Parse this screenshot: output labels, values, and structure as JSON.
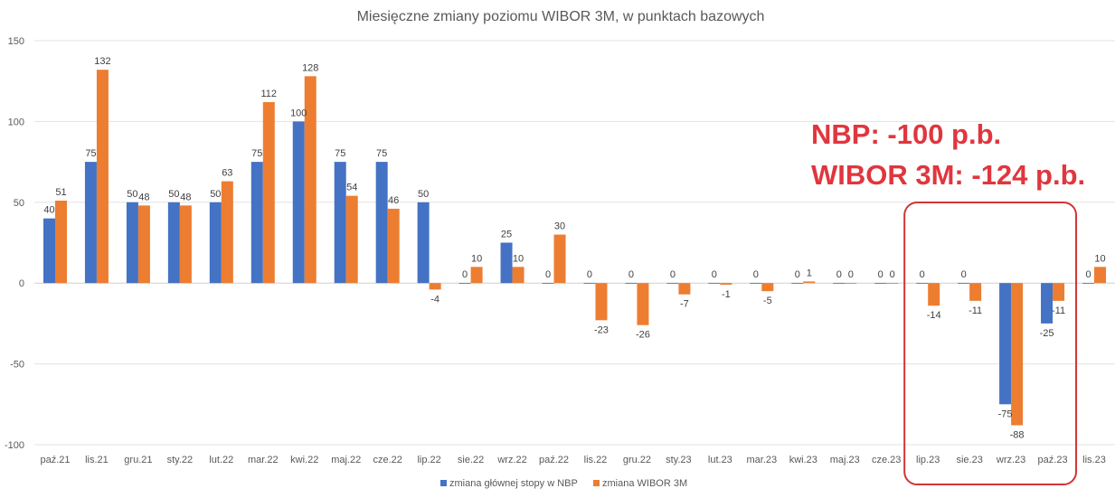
{
  "chart_data": {
    "type": "bar",
    "title": "Miesięczne zmiany poziomu WIBOR 3M, w punktach bazowych",
    "categories": [
      "paź.21",
      "lis.21",
      "gru.21",
      "sty.22",
      "lut.22",
      "mar.22",
      "kwi.22",
      "maj.22",
      "cze.22",
      "lip.22",
      "sie.22",
      "wrz.22",
      "paź.22",
      "lis.22",
      "gru.22",
      "sty.23",
      "lut.23",
      "mar.23",
      "kwi.23",
      "maj.23",
      "cze.23",
      "lip.23",
      "sie.23",
      "wrz.23",
      "paź.23",
      "lis.23"
    ],
    "series": [
      {
        "name": "zmiana głównej stopy w NBP",
        "color": "#4472c4",
        "values": [
          40,
          75,
          50,
          50,
          50,
          75,
          100,
          75,
          75,
          50,
          0,
          25,
          0,
          0,
          0,
          0,
          0,
          0,
          0,
          0,
          0,
          0,
          0,
          -75,
          -25,
          0
        ]
      },
      {
        "name": "zmiana WIBOR 3M",
        "color": "#ed7d31",
        "values": [
          51,
          132,
          48,
          48,
          63,
          112,
          128,
          54,
          46,
          -4,
          10,
          10,
          30,
          -23,
          -26,
          -7,
          -1,
          -5,
          1,
          0,
          0,
          -14,
          -11,
          -88,
          -11,
          10
        ]
      }
    ],
    "ylim": [
      -100,
      150
    ],
    "yticks": [
      -100,
      -50,
      0,
      50,
      100,
      150
    ],
    "xlabel": "",
    "ylabel": "",
    "grid": true,
    "legend": "bottom",
    "annotations": [
      {
        "text": "NBP: -100 p.b.",
        "color": "#e0363e"
      },
      {
        "text": "WIBOR 3M: -124 p.b.",
        "color": "#e0363e"
      }
    ],
    "highlight": {
      "categories": [
        "lip.23",
        "sie.23",
        "wrz.23",
        "paź.23"
      ],
      "color": "#d13438"
    }
  }
}
